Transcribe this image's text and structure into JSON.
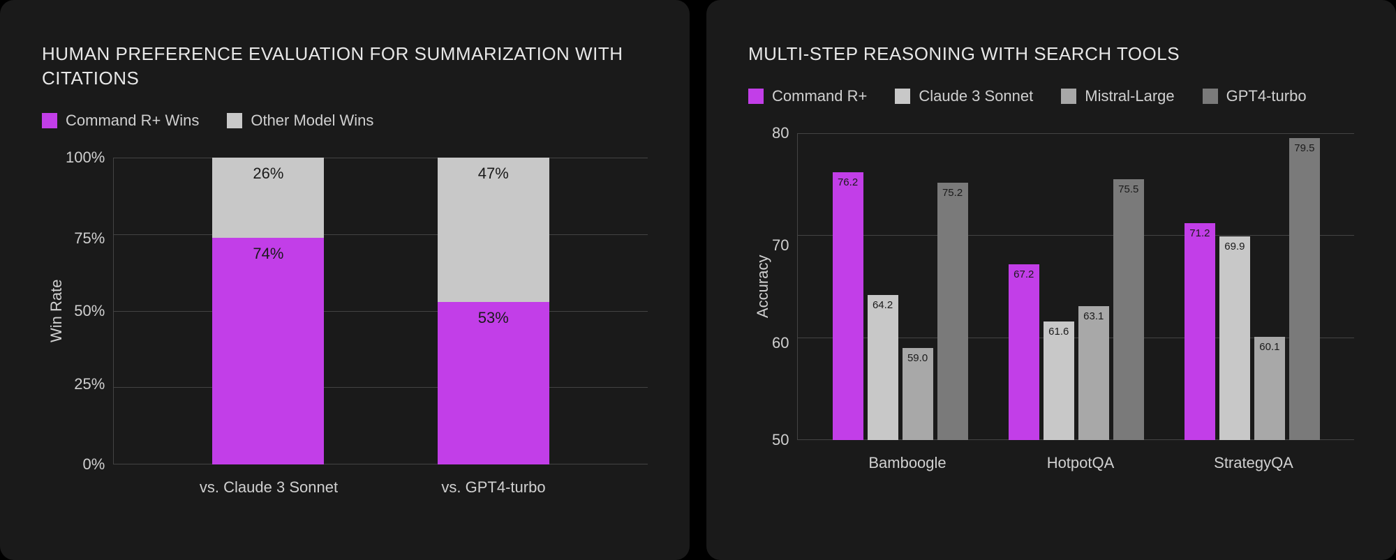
{
  "left_chart": {
    "type": "stacked-bar",
    "title": "HUMAN PREFERENCE EVALUATION FOR SUMMARIZATION WITH CITATIONS",
    "y_axis_label": "Win Rate",
    "y_ticks": [
      "100%",
      "75%",
      "50%",
      "25%",
      "0%"
    ],
    "y_min": 0,
    "y_max": 100,
    "legend": [
      {
        "label": "Command R+ Wins",
        "color": "#c23ee8"
      },
      {
        "label": "Other Model Wins",
        "color": "#c8c8c8"
      }
    ],
    "bars": [
      {
        "x_label": "vs. Claude 3 Sonnet",
        "bottom_value": 74,
        "bottom_label": "74%",
        "top_value": 26,
        "top_label": "26%"
      },
      {
        "x_label": "vs. GPT4-turbo",
        "bottom_value": 53,
        "bottom_label": "53%",
        "top_value": 47,
        "top_label": "47%"
      }
    ],
    "bottom_color": "#c23ee8",
    "top_color": "#c8c8c8",
    "grid_color": "#444444",
    "text_color": "#d0d0d0",
    "background_color": "#1a1a1a"
  },
  "right_chart": {
    "type": "grouped-bar",
    "title": "MULTI-STEP REASONING WITH SEARCH TOOLS",
    "y_axis_label": "Accuracy",
    "y_ticks": [
      "80",
      "70",
      "60",
      "50"
    ],
    "y_min": 50,
    "y_max": 80,
    "legend": [
      {
        "label": "Command R+",
        "color": "#c23ee8"
      },
      {
        "label": "Claude 3 Sonnet",
        "color": "#c8c8c8"
      },
      {
        "label": "Mistral-Large",
        "color": "#a8a8a8"
      },
      {
        "label": "GPT4-turbo",
        "color": "#7a7a7a"
      }
    ],
    "groups": [
      {
        "x_label": "Bamboogle",
        "values": [
          76.2,
          64.2,
          59.0,
          75.2
        ],
        "labels": [
          "76.2",
          "64.2",
          "59.0",
          "75.2"
        ]
      },
      {
        "x_label": "HotpotQA",
        "values": [
          67.2,
          61.6,
          63.1,
          75.5
        ],
        "labels": [
          "67.2",
          "61.6",
          "63.1",
          "75.5"
        ]
      },
      {
        "x_label": "StrategyQA",
        "values": [
          71.2,
          69.9,
          60.1,
          79.5
        ],
        "labels": [
          "71.2",
          "69.9",
          "60.1",
          "79.5"
        ]
      }
    ],
    "series_colors": [
      "#c23ee8",
      "#c8c8c8",
      "#a8a8a8",
      "#7a7a7a"
    ],
    "grid_color": "#444444",
    "text_color": "#d0d0d0",
    "background_color": "#1a1a1a"
  }
}
